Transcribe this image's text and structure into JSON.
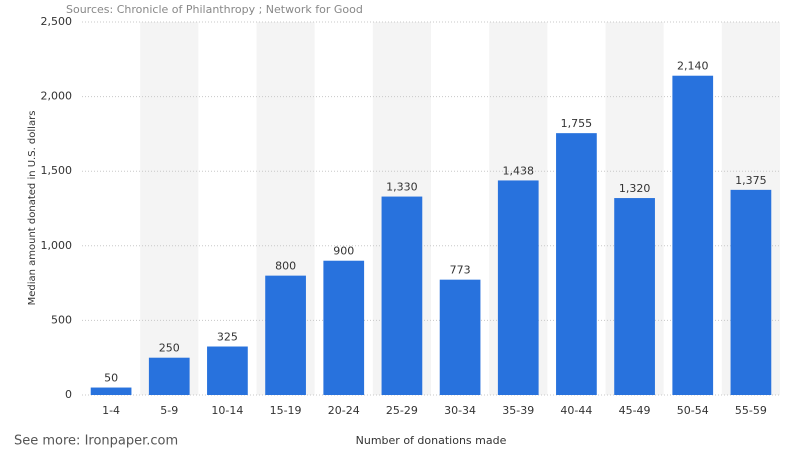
{
  "chart_data": {
    "type": "bar",
    "source": "Sources: Chronicle of Philanthropy ; Network for Good",
    "footer": "See more: Ironpaper.com",
    "y_label": "Median amount donated in U.S. dollars",
    "x_label": "Number of donations made",
    "categories": [
      "1-4",
      "5-9",
      "10-14",
      "15-19",
      "20-24",
      "25-29",
      "30-34",
      "35-39",
      "40-44",
      "45-49",
      "50-54",
      "55-59"
    ],
    "values": [
      50,
      250,
      325,
      800,
      900,
      1330,
      773,
      1438,
      1755,
      1320,
      2140,
      1375
    ],
    "value_labels": [
      "50",
      "250",
      "325",
      "800",
      "900",
      "1,330",
      "773",
      "1,438",
      "1,755",
      "1,320",
      "2,140",
      "1,375"
    ],
    "color": "#2872dd",
    "band_color": "#f4f4f4",
    "ylim": [
      0,
      2500
    ],
    "yticks": [
      0,
      500,
      {
        "value": 1000,
        "label": "1,000"
      },
      {
        "value": 1500,
        "label": "1,500"
      },
      {
        "value": 2000,
        "label": "2,000"
      },
      {
        "value": 2500,
        "label": "2,500"
      }
    ],
    "grid": true
  }
}
